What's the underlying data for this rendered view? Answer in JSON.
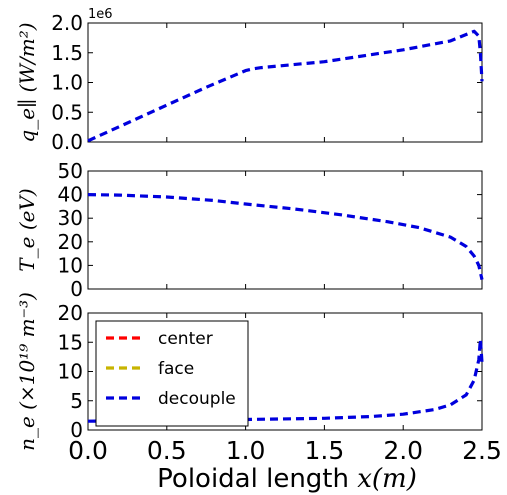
{
  "chart_data": [
    {
      "type": "line",
      "ylabel": "q_e∥ (W/m²)",
      "offset_text": "1e6",
      "xlim": [
        0,
        2.5
      ],
      "ylim": [
        0,
        2.0
      ],
      "yticks": [
        "0.0",
        "0.5",
        "1.0",
        "1.5",
        "2.0"
      ],
      "series": [
        {
          "name": "center",
          "color": "#ff0000",
          "x": [],
          "y": []
        },
        {
          "name": "face",
          "color": "#c8b400",
          "x": [],
          "y": []
        },
        {
          "name": "decouple",
          "color": "#0000dd",
          "x": [
            0.0,
            0.25,
            0.5,
            0.75,
            1.0,
            1.05,
            1.1,
            1.5,
            2.0,
            2.3,
            2.45,
            2.48,
            2.49,
            2.5
          ],
          "y": [
            0.02,
            0.32,
            0.62,
            0.92,
            1.2,
            1.23,
            1.25,
            1.35,
            1.55,
            1.7,
            1.86,
            1.78,
            1.5,
            1.02
          ]
        }
      ]
    },
    {
      "type": "line",
      "ylabel": "T_e (eV)",
      "xlim": [
        0,
        2.5
      ],
      "ylim": [
        0,
        50
      ],
      "yticks": [
        "0",
        "10",
        "20",
        "30",
        "40",
        "50"
      ],
      "series": [
        {
          "name": "center",
          "color": "#ff0000",
          "x": [],
          "y": []
        },
        {
          "name": "face",
          "color": "#c8b400",
          "x": [],
          "y": []
        },
        {
          "name": "decouple",
          "color": "#0000dd",
          "x": [
            0.0,
            0.2,
            0.5,
            0.8,
            1.0,
            1.3,
            1.6,
            1.9,
            2.1,
            2.3,
            2.4,
            2.45,
            2.48,
            2.5
          ],
          "y": [
            40,
            39.8,
            39,
            37.5,
            36,
            34,
            31.5,
            28.5,
            26,
            22,
            18,
            14,
            10,
            4
          ]
        }
      ]
    },
    {
      "type": "line",
      "ylabel": "n_e (×10¹⁹ m⁻³)",
      "xlim": [
        0,
        2.5
      ],
      "ylim": [
        0,
        20
      ],
      "yticks": [
        "0",
        "5",
        "10",
        "15",
        "20"
      ],
      "xticks": [
        "0.0",
        "0.5",
        "1.0",
        "1.5",
        "2.0",
        "2.5"
      ],
      "xlabel_text": "Poloidal length ",
      "xlabel_math": "x(m)",
      "legend": {
        "placement": "upper-left",
        "entries": [
          "center",
          "face",
          "decouple"
        ]
      },
      "series": [
        {
          "name": "center",
          "color": "#ff0000",
          "x": [],
          "y": []
        },
        {
          "name": "face",
          "color": "#c8b400",
          "x": [],
          "y": []
        },
        {
          "name": "decouple",
          "color": "#0000dd",
          "x": [
            0.0,
            0.5,
            1.0,
            1.5,
            1.8,
            2.0,
            2.2,
            2.3,
            2.4,
            2.45,
            2.48,
            2.49,
            2.5
          ],
          "y": [
            1.5,
            1.6,
            1.8,
            2.0,
            2.3,
            2.7,
            3.5,
            4.3,
            6.0,
            8.5,
            12.0,
            15.5,
            11.5
          ]
        }
      ]
    }
  ]
}
